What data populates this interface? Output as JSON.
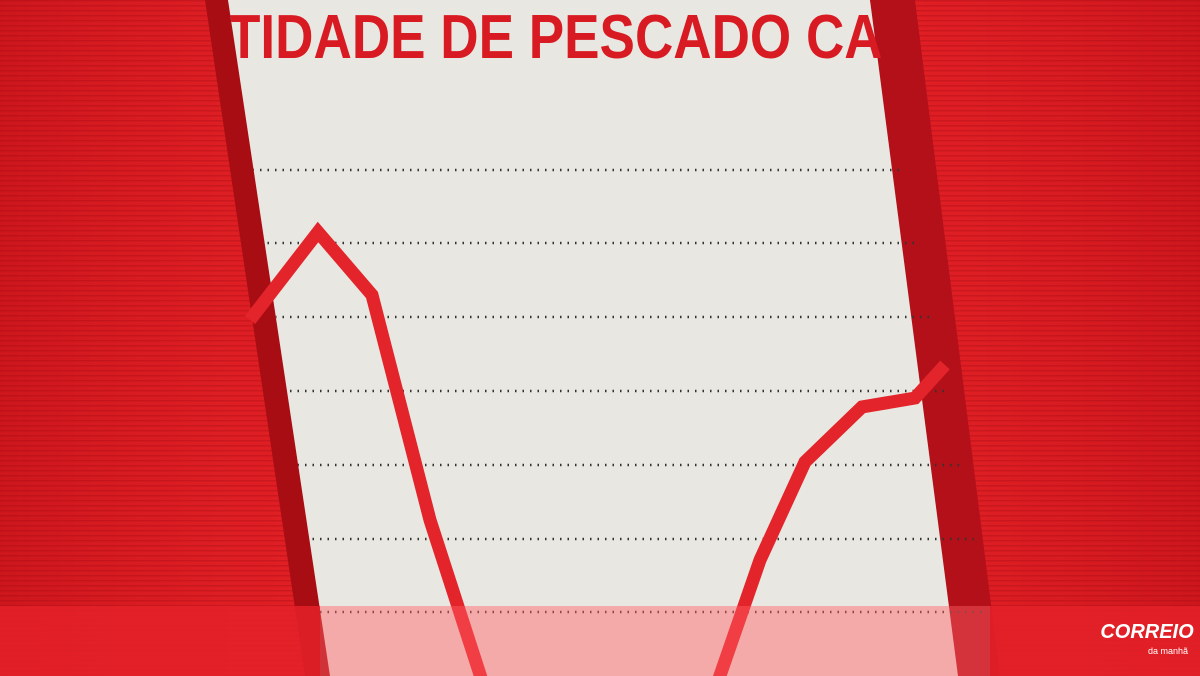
{
  "headline": "TIDADE DE PESCADO CAP",
  "logo": {
    "name": "CORREIO",
    "tagline": "da manhã"
  }
}
